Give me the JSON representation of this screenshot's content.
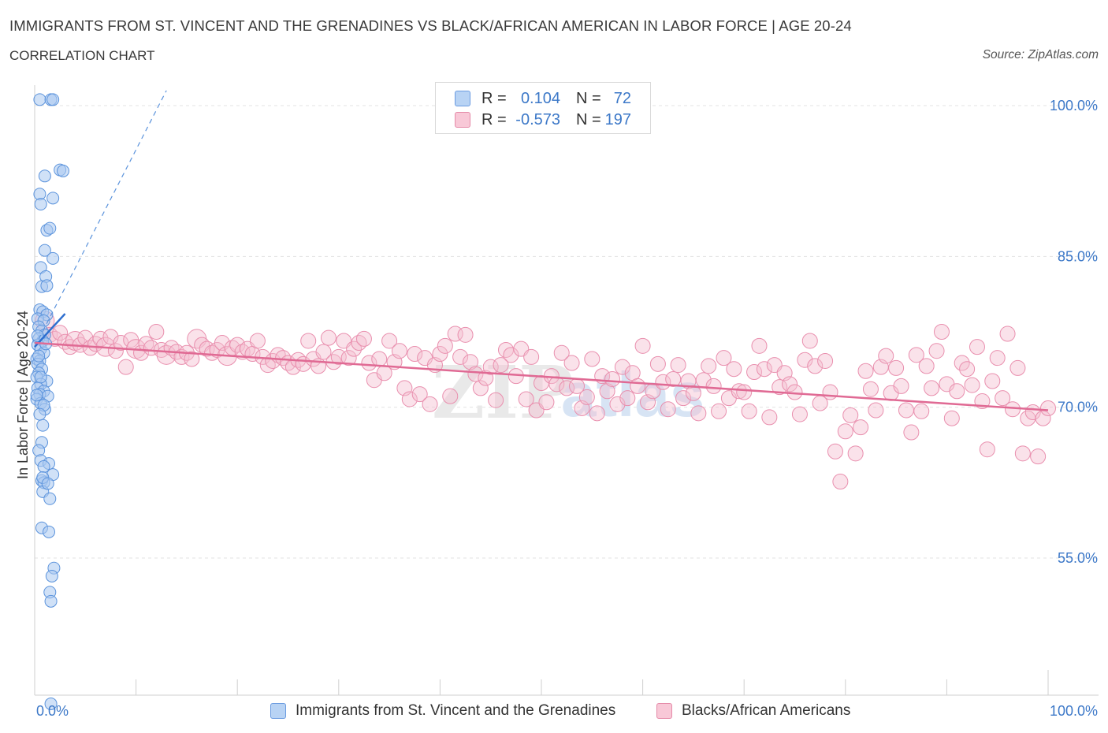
{
  "header": {
    "title": "IMMIGRANTS FROM ST. VINCENT AND THE GRENADINES VS BLACK/AFRICAN AMERICAN IN LABOR FORCE | AGE 20-24",
    "subtitle": "CORRELATION CHART",
    "source": "Source: ZipAtlas.com"
  },
  "legend": {
    "rows": [
      {
        "r_label": "R =",
        "r_value": "0.104",
        "n_label": "N =",
        "n_value": "72",
        "color": "#a9c8f0",
        "border": "#6a9be0"
      },
      {
        "r_label": "R =",
        "r_value": "-0.573",
        "n_label": "N =",
        "n_value": "197",
        "color": "#f5bfd0",
        "border": "#e58aa8"
      }
    ]
  },
  "bottom_legend": {
    "series_a": "Immigrants from St. Vincent and the Grenadines",
    "series_b": "Blacks/African Americans"
  },
  "watermark": {
    "zip": "ZIP",
    "atlas": "atlas"
  },
  "chart_data": {
    "type": "scatter",
    "title": "IMMIGRANTS FROM ST. VINCENT AND THE GRENADINES VS BLACK/AFRICAN AMERICAN IN LABOR FORCE | AGE 20-24",
    "ylabel": "In Labor Force | Age 20-24",
    "xlabel": "",
    "xlim": [
      0,
      100
    ],
    "ylim": [
      40,
      100
    ],
    "x_tick_labels": [
      "0.0%",
      "100.0%"
    ],
    "y_ticks": [
      55,
      70,
      85,
      100
    ],
    "y_tick_labels": [
      "55.0%",
      "70.0%",
      "85.0%",
      "100.0%"
    ],
    "grid": true,
    "colors": {
      "blue": "#5b93dc",
      "pink": "#e87aa0",
      "blue_fill": "#a9c8f0",
      "pink_fill": "#f5bfd0"
    },
    "series": [
      {
        "name": "Immigrants from St. Vincent and the Grenadines",
        "color": "#5b93dc",
        "trend": {
          "x": [
            0.0,
            3.0
          ],
          "y": [
            76.0,
            79.3
          ],
          "solid": true
        },
        "trend_ext": {
          "x": [
            0.0,
            13.0
          ],
          "y": [
            76.0,
            101.5
          ],
          "dashed": true
        },
        "points": [
          [
            0.5,
            100.6
          ],
          [
            1.6,
            100.6
          ],
          [
            1.8,
            100.6
          ],
          [
            1.0,
            93.0
          ],
          [
            2.5,
            93.6
          ],
          [
            2.8,
            93.5
          ],
          [
            0.5,
            91.2
          ],
          [
            1.8,
            90.8
          ],
          [
            0.6,
            90.2
          ],
          [
            1.2,
            87.6
          ],
          [
            1.5,
            87.8
          ],
          [
            1.0,
            85.6
          ],
          [
            1.8,
            84.8
          ],
          [
            0.6,
            83.9
          ],
          [
            1.1,
            83.0
          ],
          [
            0.7,
            82.0
          ],
          [
            1.2,
            82.1
          ],
          [
            0.5,
            79.7
          ],
          [
            0.8,
            79.5
          ],
          [
            1.2,
            79.2
          ],
          [
            0.3,
            78.8
          ],
          [
            0.9,
            78.6
          ],
          [
            0.4,
            78.0
          ],
          [
            0.7,
            77.6
          ],
          [
            1.0,
            77.2
          ],
          [
            0.4,
            76.8
          ],
          [
            0.8,
            76.6
          ],
          [
            0.3,
            76.2
          ],
          [
            0.6,
            75.8
          ],
          [
            0.9,
            75.4
          ],
          [
            0.2,
            74.8
          ],
          [
            0.5,
            74.6
          ],
          [
            0.3,
            74.3
          ],
          [
            0.7,
            73.8
          ],
          [
            0.4,
            73.4
          ],
          [
            0.2,
            73.0
          ],
          [
            1.2,
            72.6
          ],
          [
            0.6,
            72.3
          ],
          [
            0.3,
            71.9
          ],
          [
            0.9,
            71.6
          ],
          [
            0.5,
            71.3
          ],
          [
            1.3,
            71.1
          ],
          [
            0.2,
            70.8
          ],
          [
            0.6,
            70.4
          ],
          [
            1.0,
            69.8
          ],
          [
            0.8,
            68.2
          ],
          [
            0.7,
            66.5
          ],
          [
            0.4,
            65.7
          ],
          [
            0.6,
            64.7
          ],
          [
            1.4,
            64.4
          ],
          [
            0.9,
            64.1
          ],
          [
            1.8,
            63.3
          ],
          [
            0.7,
            62.7
          ],
          [
            0.9,
            62.5
          ],
          [
            0.8,
            61.6
          ],
          [
            1.5,
            60.9
          ],
          [
            0.7,
            58.0
          ],
          [
            1.4,
            57.6
          ],
          [
            1.9,
            54.0
          ],
          [
            1.7,
            53.2
          ],
          [
            1.5,
            51.6
          ],
          [
            1.6,
            50.7
          ],
          [
            1.6,
            40.5
          ],
          [
            0.3,
            77.1
          ],
          [
            0.6,
            73.0
          ],
          [
            0.9,
            70.2
          ],
          [
            0.4,
            75.1
          ],
          [
            1.1,
            76.3
          ],
          [
            0.2,
            71.2
          ],
          [
            0.5,
            69.3
          ],
          [
            0.8,
            63.0
          ],
          [
            1.3,
            62.4
          ]
        ]
      },
      {
        "name": "Blacks/African Americans",
        "color": "#e87aa0",
        "trend": {
          "x": [
            0.0,
            100.0
          ],
          "y": [
            76.4,
            69.7
          ]
        },
        "points": [
          [
            1.0,
            78.6
          ],
          [
            1.5,
            77.2
          ],
          [
            2.0,
            76.8
          ],
          [
            2.5,
            77.4
          ],
          [
            3.0,
            76.5
          ],
          [
            3.5,
            76.0
          ],
          [
            4.0,
            76.6
          ],
          [
            4.5,
            76.2
          ],
          [
            5.0,
            76.9
          ],
          [
            5.5,
            75.9
          ],
          [
            6.0,
            76.3
          ],
          [
            6.5,
            76.8
          ],
          [
            7.0,
            76.0
          ],
          [
            7.5,
            77.0
          ],
          [
            8.0,
            75.6
          ],
          [
            8.5,
            76.4
          ],
          [
            9.0,
            74.0
          ],
          [
            9.5,
            76.7
          ],
          [
            10.0,
            75.8
          ],
          [
            10.5,
            75.4
          ],
          [
            11.0,
            76.3
          ],
          [
            11.5,
            75.9
          ],
          [
            12.0,
            77.5
          ],
          [
            12.5,
            75.7
          ],
          [
            13.0,
            75.2
          ],
          [
            13.5,
            75.9
          ],
          [
            14.0,
            75.5
          ],
          [
            14.5,
            75.0
          ],
          [
            15.0,
            75.4
          ],
          [
            15.5,
            74.8
          ],
          [
            16.0,
            76.8
          ],
          [
            16.5,
            76.2
          ],
          [
            17.0,
            75.8
          ],
          [
            17.5,
            75.4
          ],
          [
            18.0,
            75.7
          ],
          [
            18.5,
            76.4
          ],
          [
            19.0,
            75.1
          ],
          [
            19.5,
            75.9
          ],
          [
            20.0,
            76.2
          ],
          [
            20.5,
            75.5
          ],
          [
            21.0,
            75.8
          ],
          [
            21.5,
            75.3
          ],
          [
            22.0,
            76.6
          ],
          [
            22.5,
            75.0
          ],
          [
            23.0,
            74.2
          ],
          [
            23.5,
            74.6
          ],
          [
            24.0,
            75.2
          ],
          [
            24.5,
            74.9
          ],
          [
            25.0,
            74.4
          ],
          [
            25.5,
            74.0
          ],
          [
            26.0,
            74.7
          ],
          [
            26.5,
            74.3
          ],
          [
            27.0,
            76.6
          ],
          [
            27.5,
            74.8
          ],
          [
            28.0,
            74.1
          ],
          [
            28.5,
            75.5
          ],
          [
            29.0,
            76.9
          ],
          [
            29.5,
            74.5
          ],
          [
            30.0,
            75.0
          ],
          [
            30.5,
            76.6
          ],
          [
            31.0,
            74.9
          ],
          [
            31.5,
            75.8
          ],
          [
            32.0,
            76.4
          ],
          [
            32.5,
            76.8
          ],
          [
            33.0,
            74.4
          ],
          [
            33.5,
            72.7
          ],
          [
            34.0,
            74.8
          ],
          [
            34.5,
            73.4
          ],
          [
            35.0,
            76.6
          ],
          [
            35.5,
            74.5
          ],
          [
            36.0,
            75.6
          ],
          [
            36.5,
            71.9
          ],
          [
            37.0,
            70.8
          ],
          [
            37.5,
            75.3
          ],
          [
            38.0,
            71.3
          ],
          [
            38.5,
            74.9
          ],
          [
            39.0,
            70.3
          ],
          [
            39.5,
            74.2
          ],
          [
            40.0,
            75.3
          ],
          [
            40.5,
            76.1
          ],
          [
            41.0,
            71.1
          ],
          [
            41.5,
            77.3
          ],
          [
            42.0,
            75.0
          ],
          [
            42.5,
            77.2
          ],
          [
            43.0,
            74.5
          ],
          [
            43.5,
            73.3
          ],
          [
            44.0,
            71.9
          ],
          [
            44.5,
            72.9
          ],
          [
            45.0,
            74.0
          ],
          [
            45.5,
            70.7
          ],
          [
            46.0,
            74.2
          ],
          [
            46.5,
            75.7
          ],
          [
            47.0,
            75.2
          ],
          [
            47.5,
            73.1
          ],
          [
            48.0,
            75.8
          ],
          [
            48.5,
            70.8
          ],
          [
            49.0,
            75.0
          ],
          [
            49.5,
            69.7
          ],
          [
            50.0,
            72.4
          ],
          [
            50.5,
            70.5
          ],
          [
            51.0,
            73.1
          ],
          [
            51.5,
            72.3
          ],
          [
            52.0,
            75.4
          ],
          [
            52.5,
            71.9
          ],
          [
            53.0,
            74.4
          ],
          [
            53.5,
            72.1
          ],
          [
            54.0,
            69.9
          ],
          [
            54.5,
            71.0
          ],
          [
            55.0,
            74.8
          ],
          [
            55.5,
            69.4
          ],
          [
            56.0,
            73.1
          ],
          [
            56.5,
            71.6
          ],
          [
            57.0,
            72.8
          ],
          [
            57.5,
            70.3
          ],
          [
            58.0,
            74.0
          ],
          [
            58.5,
            70.9
          ],
          [
            59.0,
            73.4
          ],
          [
            59.5,
            72.1
          ],
          [
            60.0,
            76.1
          ],
          [
            60.5,
            70.5
          ],
          [
            61.0,
            71.6
          ],
          [
            61.5,
            74.3
          ],
          [
            62.0,
            72.5
          ],
          [
            62.5,
            69.8
          ],
          [
            63.0,
            72.8
          ],
          [
            63.5,
            74.2
          ],
          [
            64.0,
            70.9
          ],
          [
            64.5,
            72.6
          ],
          [
            65.0,
            71.4
          ],
          [
            65.5,
            69.4
          ],
          [
            66.0,
            72.7
          ],
          [
            66.5,
            74.1
          ],
          [
            67.0,
            72.1
          ],
          [
            67.5,
            69.6
          ],
          [
            68.0,
            74.9
          ],
          [
            68.5,
            70.9
          ],
          [
            69.0,
            73.8
          ],
          [
            69.5,
            71.6
          ],
          [
            70.0,
            71.5
          ],
          [
            70.5,
            69.6
          ],
          [
            71.0,
            73.5
          ],
          [
            71.5,
            76.1
          ],
          [
            72.0,
            73.8
          ],
          [
            72.5,
            69.0
          ],
          [
            73.0,
            74.2
          ],
          [
            73.5,
            72.0
          ],
          [
            74.0,
            73.4
          ],
          [
            74.5,
            72.3
          ],
          [
            75.0,
            71.5
          ],
          [
            75.5,
            69.3
          ],
          [
            76.0,
            74.7
          ],
          [
            76.5,
            76.6
          ],
          [
            77.0,
            74.1
          ],
          [
            77.5,
            70.4
          ],
          [
            78.0,
            74.6
          ],
          [
            78.5,
            71.5
          ],
          [
            79.0,
            65.6
          ],
          [
            79.5,
            62.6
          ],
          [
            80.0,
            67.6
          ],
          [
            80.5,
            69.2
          ],
          [
            81.0,
            65.4
          ],
          [
            81.5,
            68.0
          ],
          [
            82.0,
            73.6
          ],
          [
            82.5,
            71.8
          ],
          [
            83.0,
            69.7
          ],
          [
            83.5,
            74.0
          ],
          [
            84.0,
            75.1
          ],
          [
            84.5,
            71.4
          ],
          [
            85.0,
            73.9
          ],
          [
            85.5,
            72.1
          ],
          [
            86.0,
            69.7
          ],
          [
            86.5,
            67.5
          ],
          [
            87.0,
            75.2
          ],
          [
            87.5,
            69.6
          ],
          [
            88.0,
            74.1
          ],
          [
            88.5,
            71.9
          ],
          [
            89.0,
            75.6
          ],
          [
            89.5,
            77.5
          ],
          [
            90.0,
            72.3
          ],
          [
            90.5,
            68.9
          ],
          [
            91.0,
            71.6
          ],
          [
            91.5,
            74.4
          ],
          [
            92.0,
            73.8
          ],
          [
            92.5,
            72.2
          ],
          [
            93.0,
            76.0
          ],
          [
            93.5,
            70.6
          ],
          [
            94.0,
            65.8
          ],
          [
            94.5,
            72.6
          ],
          [
            95.0,
            74.9
          ],
          [
            95.5,
            70.9
          ],
          [
            96.0,
            77.3
          ],
          [
            96.5,
            69.8
          ],
          [
            97.0,
            73.9
          ],
          [
            97.5,
            65.4
          ],
          [
            98.0,
            68.9
          ],
          [
            98.5,
            69.5
          ],
          [
            99.0,
            65.1
          ],
          [
            99.5,
            68.9
          ],
          [
            100.0,
            69.9
          ]
        ]
      }
    ]
  }
}
